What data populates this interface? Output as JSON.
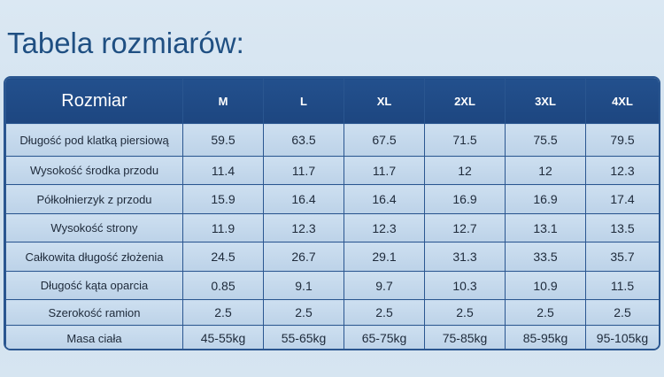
{
  "title": "Tabela rozmiarów:",
  "table": {
    "corner": "Rozmiar",
    "sizes": [
      "M",
      "L",
      "XL",
      "2XL",
      "3XL",
      "4XL"
    ],
    "rows": [
      {
        "label": "Długość pod klatką piersiową",
        "values": [
          "59.5",
          "63.5",
          "67.5",
          "71.5",
          "75.5",
          "79.5"
        ]
      },
      {
        "label": "Wysokość środka przodu",
        "values": [
          "11.4",
          "11.7",
          "11.7",
          "12",
          "12",
          "12.3"
        ]
      },
      {
        "label": "Półkołnierzyk z przodu",
        "values": [
          "15.9",
          "16.4",
          "16.4",
          "16.9",
          "16.9",
          "17.4"
        ]
      },
      {
        "label": "Wysokość strony",
        "values": [
          "11.9",
          "12.3",
          "12.3",
          "12.7",
          "13.1",
          "13.5"
        ]
      },
      {
        "label": "Całkowita długość złożenia",
        "values": [
          "24.5",
          "26.7",
          "29.1",
          "31.3",
          "33.5",
          "35.7"
        ]
      },
      {
        "label": "Długość kąta oparcia",
        "values": [
          "0.85",
          "9.1",
          "9.7",
          "10.3",
          "10.9",
          "11.5"
        ]
      },
      {
        "label": "Szerokość ramion",
        "values": [
          "2.5",
          "2.5",
          "2.5",
          "2.5",
          "2.5",
          "2.5"
        ]
      },
      {
        "label": "Masa ciała",
        "values": [
          "45-55kg",
          "55-65kg",
          "65-75kg",
          "75-85kg",
          "85-95kg",
          "95-105kg"
        ]
      }
    ]
  }
}
